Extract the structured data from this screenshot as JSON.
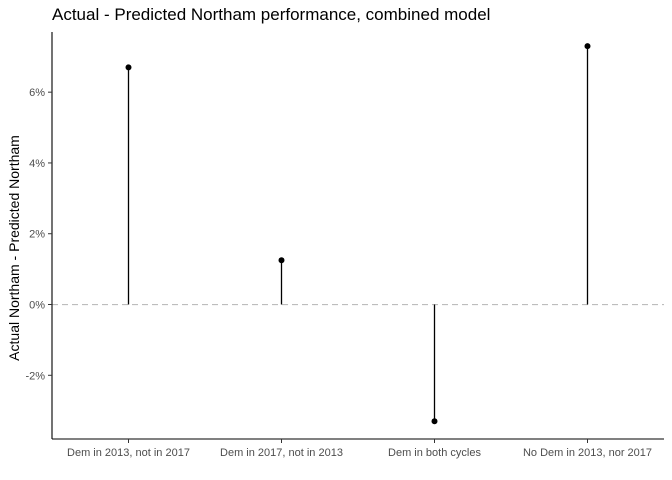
{
  "chart_data": {
    "type": "lollipop",
    "title": "Actual - Predicted Northam performance, combined model",
    "xlabel": "",
    "ylabel": "Actual Northam - Predicted Northam",
    "categories": [
      "Dem in 2013, not in 2017",
      "Dem in 2017, not in 2013",
      "Dem in both cycles",
      "No Dem in 2013, nor 2017"
    ],
    "values": [
      0.067,
      0.0125,
      -0.033,
      0.073
    ],
    "ylim": [
      -0.038,
      0.077
    ],
    "yticks": [
      -0.02,
      0,
      0.02,
      0.04,
      0.06
    ],
    "ytick_labels": [
      "-2%",
      "0%",
      "2%",
      "4%",
      "6%"
    ],
    "reference_line": 0,
    "grid": false,
    "colors": {
      "points": "#000000",
      "reference": "#bdbdbd"
    }
  }
}
